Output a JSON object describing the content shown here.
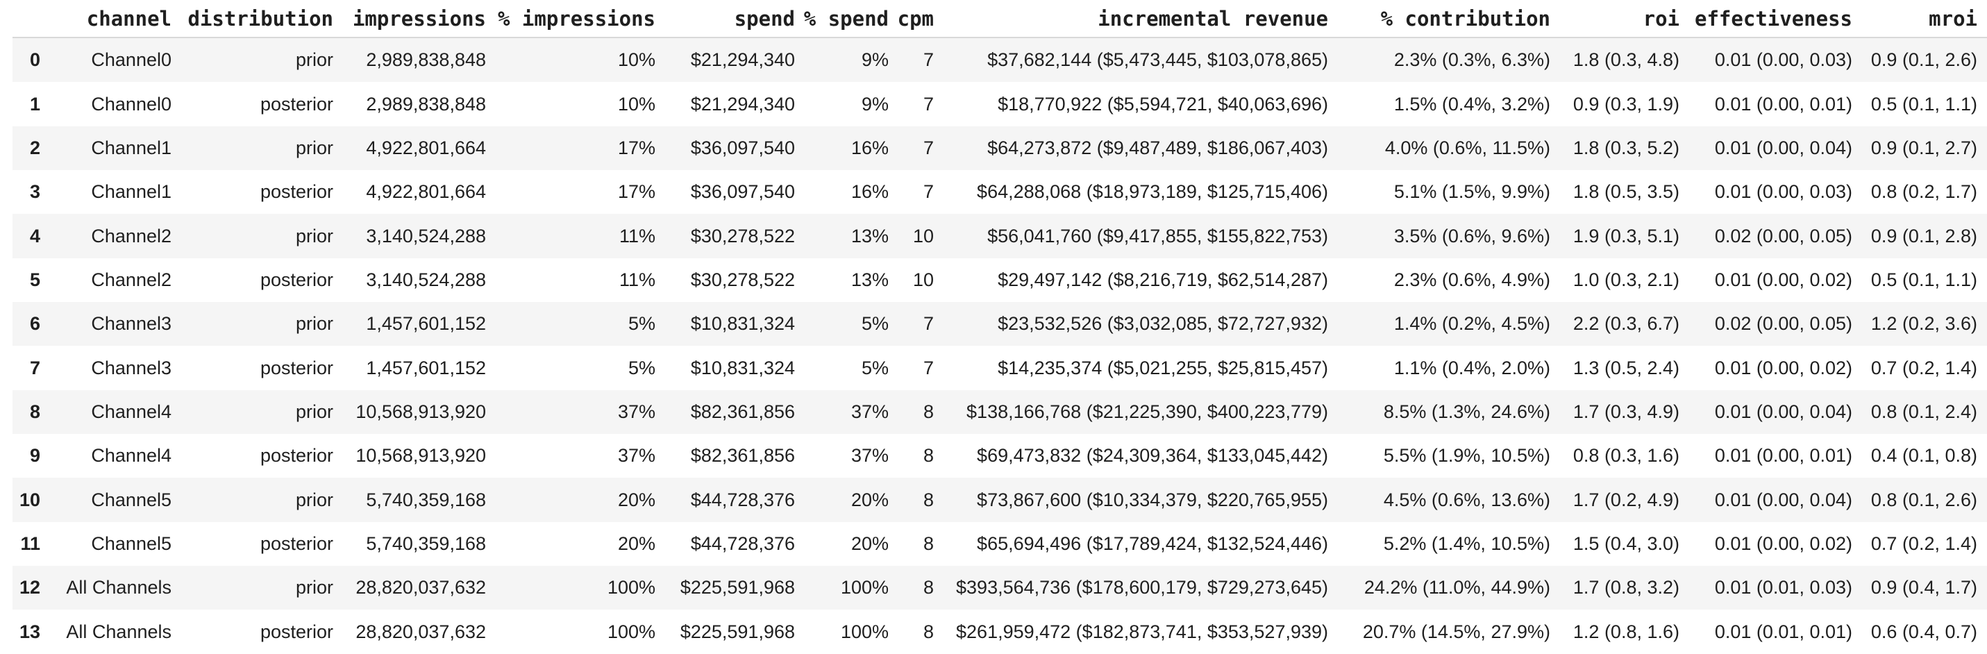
{
  "colors": {
    "background": "#ffffff",
    "text": "#1f1f1f",
    "row_stripe": "#f5f5f5",
    "header_border": "#d9d9d9"
  },
  "chart_data": {
    "type": "table",
    "title": "",
    "columns": [
      "",
      "channel",
      "distribution",
      "impressions",
      "% impressions",
      "spend",
      "% spend",
      "cpm",
      "incremental revenue",
      "% contribution",
      "roi",
      "effectiveness",
      "mroi"
    ],
    "rows": [
      [
        "0",
        "Channel0",
        "prior",
        "2,989,838,848",
        "10%",
        "$21,294,340",
        "9%",
        "7",
        "$37,682,144 ($5,473,445, $103,078,865)",
        "2.3% (0.3%, 6.3%)",
        "1.8 (0.3, 4.8)",
        "0.01 (0.00, 0.03)",
        "0.9 (0.1, 2.6)"
      ],
      [
        "1",
        "Channel0",
        "posterior",
        "2,989,838,848",
        "10%",
        "$21,294,340",
        "9%",
        "7",
        "$18,770,922 ($5,594,721, $40,063,696)",
        "1.5% (0.4%, 3.2%)",
        "0.9 (0.3, 1.9)",
        "0.01 (0.00, 0.01)",
        "0.5 (0.1, 1.1)"
      ],
      [
        "2",
        "Channel1",
        "prior",
        "4,922,801,664",
        "17%",
        "$36,097,540",
        "16%",
        "7",
        "$64,273,872 ($9,487,489, $186,067,403)",
        "4.0% (0.6%, 11.5%)",
        "1.8 (0.3, 5.2)",
        "0.01 (0.00, 0.04)",
        "0.9 (0.1, 2.7)"
      ],
      [
        "3",
        "Channel1",
        "posterior",
        "4,922,801,664",
        "17%",
        "$36,097,540",
        "16%",
        "7",
        "$64,288,068 ($18,973,189, $125,715,406)",
        "5.1% (1.5%, 9.9%)",
        "1.8 (0.5, 3.5)",
        "0.01 (0.00, 0.03)",
        "0.8 (0.2, 1.7)"
      ],
      [
        "4",
        "Channel2",
        "prior",
        "3,140,524,288",
        "11%",
        "$30,278,522",
        "13%",
        "10",
        "$56,041,760 ($9,417,855, $155,822,753)",
        "3.5% (0.6%, 9.6%)",
        "1.9 (0.3, 5.1)",
        "0.02 (0.00, 0.05)",
        "0.9 (0.1, 2.8)"
      ],
      [
        "5",
        "Channel2",
        "posterior",
        "3,140,524,288",
        "11%",
        "$30,278,522",
        "13%",
        "10",
        "$29,497,142 ($8,216,719, $62,514,287)",
        "2.3% (0.6%, 4.9%)",
        "1.0 (0.3, 2.1)",
        "0.01 (0.00, 0.02)",
        "0.5 (0.1, 1.1)"
      ],
      [
        "6",
        "Channel3",
        "prior",
        "1,457,601,152",
        "5%",
        "$10,831,324",
        "5%",
        "7",
        "$23,532,526 ($3,032,085, $72,727,932)",
        "1.4% (0.2%, 4.5%)",
        "2.2 (0.3, 6.7)",
        "0.02 (0.00, 0.05)",
        "1.2 (0.2, 3.6)"
      ],
      [
        "7",
        "Channel3",
        "posterior",
        "1,457,601,152",
        "5%",
        "$10,831,324",
        "5%",
        "7",
        "$14,235,374 ($5,021,255, $25,815,457)",
        "1.1% (0.4%, 2.0%)",
        "1.3 (0.5, 2.4)",
        "0.01 (0.00, 0.02)",
        "0.7 (0.2, 1.4)"
      ],
      [
        "8",
        "Channel4",
        "prior",
        "10,568,913,920",
        "37%",
        "$82,361,856",
        "37%",
        "8",
        "$138,166,768 ($21,225,390, $400,223,779)",
        "8.5% (1.3%, 24.6%)",
        "1.7 (0.3, 4.9)",
        "0.01 (0.00, 0.04)",
        "0.8 (0.1, 2.4)"
      ],
      [
        "9",
        "Channel4",
        "posterior",
        "10,568,913,920",
        "37%",
        "$82,361,856",
        "37%",
        "8",
        "$69,473,832 ($24,309,364, $133,045,442)",
        "5.5% (1.9%, 10.5%)",
        "0.8 (0.3, 1.6)",
        "0.01 (0.00, 0.01)",
        "0.4 (0.1, 0.8)"
      ],
      [
        "10",
        "Channel5",
        "prior",
        "5,740,359,168",
        "20%",
        "$44,728,376",
        "20%",
        "8",
        "$73,867,600 ($10,334,379, $220,765,955)",
        "4.5% (0.6%, 13.6%)",
        "1.7 (0.2, 4.9)",
        "0.01 (0.00, 0.04)",
        "0.8 (0.1, 2.6)"
      ],
      [
        "11",
        "Channel5",
        "posterior",
        "5,740,359,168",
        "20%",
        "$44,728,376",
        "20%",
        "8",
        "$65,694,496 ($17,789,424, $132,524,446)",
        "5.2% (1.4%, 10.5%)",
        "1.5 (0.4, 3.0)",
        "0.01 (0.00, 0.02)",
        "0.7 (0.2, 1.4)"
      ],
      [
        "12",
        "All Channels",
        "prior",
        "28,820,037,632",
        "100%",
        "$225,591,968",
        "100%",
        "8",
        "$393,564,736 ($178,600,179, $729,273,645)",
        "24.2% (11.0%, 44.9%)",
        "1.7 (0.8, 3.2)",
        "0.01 (0.01, 0.03)",
        "0.9 (0.4, 1.7)"
      ],
      [
        "13",
        "All Channels",
        "posterior",
        "28,820,037,632",
        "100%",
        "$225,591,968",
        "100%",
        "8",
        "$261,959,472 ($182,873,741, $353,527,939)",
        "20.7% (14.5%, 27.9%)",
        "1.2 (0.8, 1.6)",
        "0.01 (0.01, 0.01)",
        "0.6 (0.4, 0.7)"
      ]
    ],
    "layout": {
      "striped_rows": true,
      "shaded_row_indices": [
        0,
        2,
        4,
        6,
        8,
        10,
        12
      ],
      "cell_alignment": "right",
      "header_divider": true,
      "legend_position": "none",
      "grid": false
    }
  }
}
